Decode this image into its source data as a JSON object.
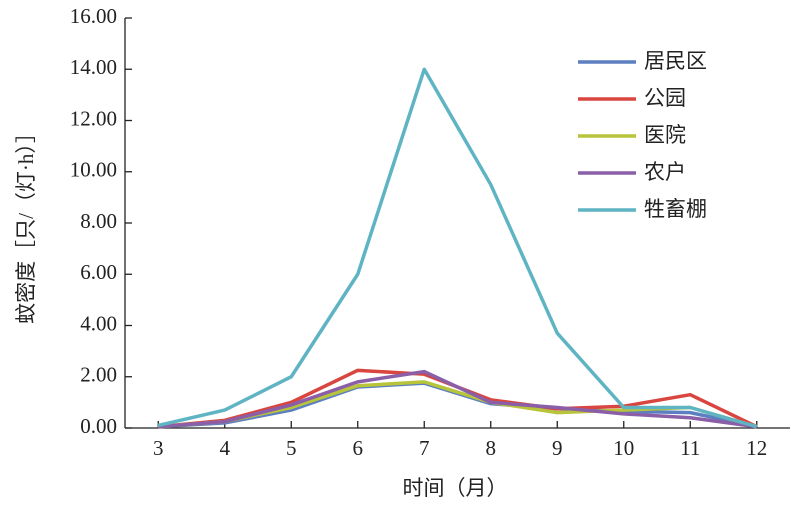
{
  "chart_data": {
    "type": "line",
    "x_label": "时间（月）",
    "y_label": "蚊密度［只/（灯·h）］",
    "x": [
      3,
      4,
      5,
      6,
      7,
      8,
      9,
      10,
      11,
      12
    ],
    "xlim": [
      2.5,
      12.5
    ],
    "xticks": [
      3,
      4,
      5,
      6,
      7,
      8,
      9,
      10,
      11,
      12
    ],
    "ylim": [
      0,
      16
    ],
    "yticks": [
      {
        "value": 0,
        "label": "0.00"
      },
      {
        "value": 2,
        "label": "2.00"
      },
      {
        "value": 4,
        "label": "4.00"
      },
      {
        "value": 6,
        "label": "6.00"
      },
      {
        "value": 8,
        "label": "8.00"
      },
      {
        "value": 10,
        "label": "10.00"
      },
      {
        "value": 12,
        "label": "12.00"
      },
      {
        "value": 14,
        "label": "14.00"
      },
      {
        "value": 16,
        "label": "16.00"
      }
    ],
    "grid": false,
    "legend": "upper right",
    "series": [
      {
        "name": "居民区",
        "color": "#5b7fc0",
        "values": [
          0.05,
          0.2,
          0.7,
          1.6,
          1.75,
          0.95,
          0.75,
          0.65,
          0.6,
          0.05
        ]
      },
      {
        "name": "公园",
        "color": "#d9453f",
        "values": [
          0.05,
          0.3,
          1.0,
          2.25,
          2.1,
          1.1,
          0.75,
          0.85,
          1.3,
          0.05
        ]
      },
      {
        "name": "医院",
        "color": "#b8c43a",
        "values": [
          0.05,
          0.25,
          0.8,
          1.65,
          1.8,
          1.0,
          0.6,
          0.7,
          0.8,
          0.05
        ]
      },
      {
        "name": "农户",
        "color": "#8a5fa8",
        "values": [
          0.05,
          0.25,
          0.9,
          1.8,
          2.2,
          1.0,
          0.8,
          0.55,
          0.4,
          0.05
        ]
      },
      {
        "name": "牲畜棚",
        "color": "#5fb4c4",
        "values": [
          0.1,
          0.7,
          2.0,
          6.0,
          14.0,
          9.5,
          3.7,
          0.8,
          0.8,
          0.05
        ]
      }
    ]
  }
}
